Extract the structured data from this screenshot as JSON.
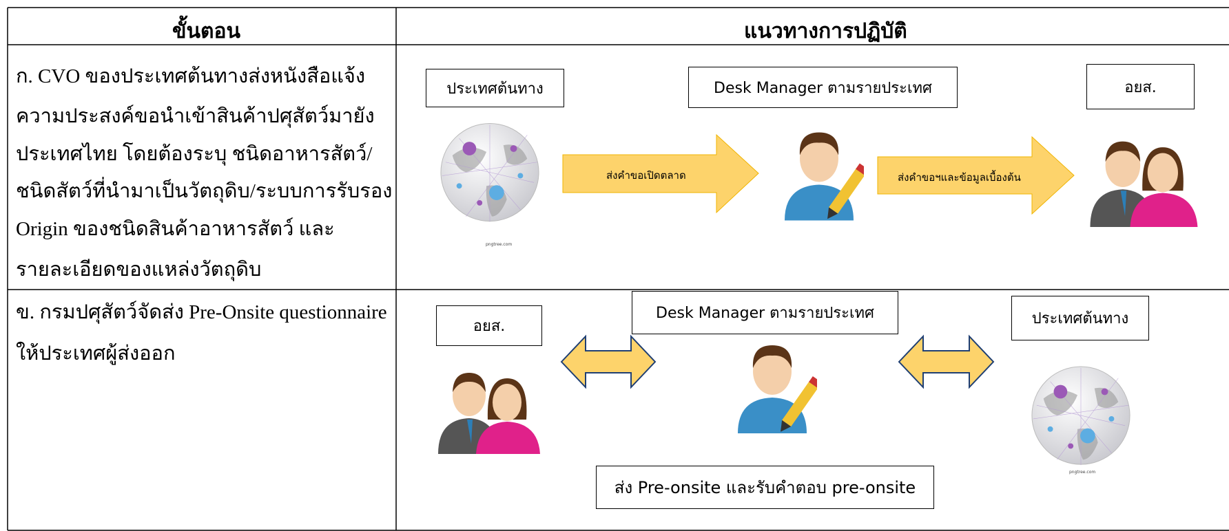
{
  "header": {
    "step": "ขั้นตอน",
    "guideline": "แนวทางการปฏิบัติ"
  },
  "rows": [
    {
      "step_lines": [
        "ก. CVO ของประเทศต้นทางส่งหนังสือแจ้ง",
        "ความประสงค์ขอนำเข้าสินค้าปศุสัตว์มายัง",
        "ประเทศไทย โดยต้องระบุ ชนิดอาหารสัตว์/",
        "ชนิดสัตว์ที่นำมาเป็นวัตถุดิบ/ระบบการรับรอง",
        "Origin ของชนิดสินค้าอาหารสัตว์ และ",
        "รายละเอียดของแหล่งวัตถุดิบ"
      ],
      "diagram": {
        "origin_box": "ประเทศต้นทาง",
        "desk_box": "Desk Manager ตามรายประเทศ",
        "agency_box": "อยส.",
        "arrow1": "ส่งคำขอเปิดตลาด",
        "arrow2": "ส่งคำขอฯและข้อมูลเบื้องต้น",
        "credit": "pngtree.com"
      }
    },
    {
      "step_lines": [
        "ข. กรมปศุสัตว์จัดส่ง Pre-Onsite questionnaire",
        "ให้ประเทศผู้ส่งออก"
      ],
      "diagram": {
        "agency_box": "อยส.",
        "desk_box": "Desk Manager ตามรายประเทศ",
        "origin_box": "ประเทศต้นทาง",
        "bottom_box": "ส่ง Pre-onsite และรับคำตอบ pre-onsite",
        "credit": "pngtree.com"
      }
    }
  ]
}
